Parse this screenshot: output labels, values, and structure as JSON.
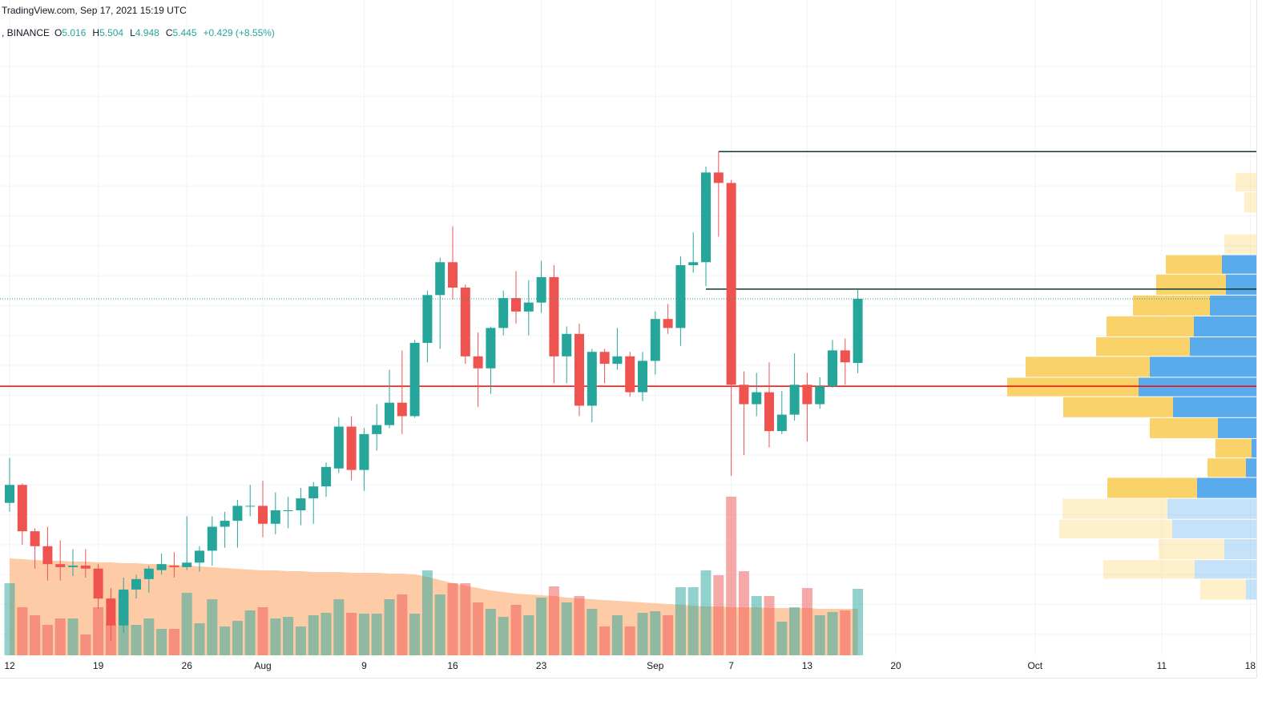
{
  "chart_data": {
    "type": "candlestick",
    "title": "TradingView.com, Sep 17, 2021 15:19 UTC",
    "subtitle": ", BINANCE",
    "ohlc_labels": [
      "O",
      "H",
      "L",
      "C"
    ],
    "change_label": "+0.429 (+8.55%)",
    "up_color": "#26a69a",
    "down_color": "#ef5350",
    "x": [
      0,
      1,
      2,
      3,
      4,
      5,
      6,
      7,
      8,
      9,
      10,
      11,
      12,
      13,
      14,
      15,
      16,
      17,
      18,
      19,
      20,
      21,
      22,
      23,
      24,
      25,
      26,
      27,
      28,
      29,
      30,
      31,
      32,
      33,
      34,
      35,
      36,
      37,
      38,
      39,
      40,
      41,
      42,
      43,
      44,
      45,
      46,
      47,
      48,
      49,
      50,
      51,
      52,
      53,
      54,
      55,
      56,
      57,
      58,
      59,
      60,
      61,
      62,
      63,
      64,
      65,
      66,
      67
    ],
    "open": [
      4.08,
      4.2,
      3.89,
      3.79,
      3.67,
      3.65,
      3.66,
      3.64,
      3.44,
      3.26,
      3.5,
      3.57,
      3.63,
      3.66,
      3.65,
      3.68,
      3.76,
      3.92,
      3.96,
      4.06,
      4.06,
      3.94,
      4.03,
      4.03,
      4.11,
      4.19,
      4.31,
      4.59,
      4.3,
      4.54,
      4.6,
      4.75,
      4.66,
      5.15,
      5.47,
      5.69,
      5.52,
      5.06,
      4.98,
      5.25,
      5.45,
      5.36,
      5.42,
      5.59,
      5.06,
      5.21,
      4.73,
      5.09,
      5.01,
      5.06,
      4.82,
      5.03,
      5.31,
      5.25,
      5.67,
      5.69,
      6.29,
      6.22,
      4.87,
      4.74,
      4.82,
      4.56,
      4.67,
      4.87,
      4.74,
      4.86,
      5.1,
      5.016
    ],
    "high": [
      4.38,
      4.21,
      3.91,
      3.92,
      3.83,
      3.77,
      3.77,
      3.67,
      3.51,
      3.58,
      3.6,
      3.66,
      3.74,
      3.75,
      3.99,
      3.79,
      3.99,
      4.02,
      4.1,
      4.2,
      4.23,
      4.15,
      4.12,
      4.18,
      4.22,
      4.35,
      4.65,
      4.66,
      4.58,
      4.74,
      4.97,
      5.1,
      5.17,
      5.5,
      5.72,
      5.93,
      5.54,
      5.22,
      5.26,
      5.5,
      5.63,
      5.57,
      5.7,
      5.67,
      5.26,
      5.28,
      5.11,
      5.11,
      5.25,
      5.09,
      5.09,
      5.36,
      5.41,
      5.73,
      5.89,
      6.33,
      6.43,
      6.24,
      4.96,
      4.95,
      5.02,
      4.83,
      5.08,
      4.95,
      4.92,
      5.17,
      5.18,
      5.504
    ],
    "low": [
      4.02,
      3.8,
      3.64,
      3.56,
      3.56,
      3.59,
      3.58,
      3.37,
      3.16,
      3.21,
      3.44,
      3.48,
      3.6,
      3.58,
      3.63,
      3.62,
      3.66,
      3.78,
      3.78,
      3.99,
      3.85,
      3.87,
      3.91,
      3.93,
      3.94,
      4.12,
      4.28,
      4.23,
      4.16,
      4.43,
      4.58,
      4.54,
      4.65,
      5.02,
      5.11,
      5.44,
      5.01,
      4.72,
      4.81,
      5.2,
      5.28,
      5.2,
      5.35,
      4.88,
      4.88,
      4.66,
      4.62,
      4.88,
      4.97,
      4.79,
      4.76,
      4.94,
      5.21,
      5.13,
      5.62,
      5.53,
      5.86,
      4.26,
      4.4,
      4.66,
      4.45,
      4.54,
      4.63,
      4.49,
      4.71,
      4.85,
      4.87,
      4.948
    ],
    "close": [
      4.2,
      3.89,
      3.79,
      3.67,
      3.65,
      3.66,
      3.64,
      3.44,
      3.26,
      3.5,
      3.57,
      3.64,
      3.67,
      3.65,
      3.68,
      3.76,
      3.92,
      3.96,
      4.06,
      4.06,
      3.94,
      4.03,
      4.03,
      4.11,
      4.19,
      4.32,
      4.59,
      4.3,
      4.54,
      4.6,
      4.75,
      4.66,
      5.15,
      5.47,
      5.69,
      5.52,
      5.06,
      4.98,
      5.25,
      5.45,
      5.36,
      5.42,
      5.59,
      5.06,
      5.21,
      4.73,
      5.09,
      5.01,
      5.06,
      4.82,
      5.03,
      5.31,
      5.25,
      5.67,
      5.69,
      6.29,
      6.22,
      4.87,
      4.74,
      4.82,
      4.56,
      4.67,
      4.87,
      4.74,
      4.86,
      5.1,
      5.02,
      5.445
    ],
    "volume": [
      90,
      60,
      50,
      38,
      46,
      46,
      26,
      60,
      40,
      80,
      38,
      46,
      33,
      33,
      78,
      40,
      70,
      36,
      43,
      56,
      60,
      46,
      48,
      36,
      50,
      53,
      70,
      53,
      52,
      52,
      70,
      76,
      52,
      106,
      76,
      90,
      90,
      66,
      58,
      48,
      63,
      50,
      72,
      86,
      66,
      74,
      58,
      36,
      50,
      36,
      53,
      55,
      50,
      85,
      85,
      106,
      100,
      198,
      105,
      74,
      74,
      42,
      60,
      84,
      50,
      54,
      56,
      83
    ],
    "volume_ma": [
      121,
      120,
      119,
      118,
      118,
      117,
      117,
      116,
      116,
      115,
      115,
      114,
      114,
      113,
      112,
      111,
      110,
      109,
      108,
      107,
      106,
      106,
      105,
      105,
      104,
      104,
      104,
      103,
      103,
      103,
      102,
      102,
      101,
      98,
      94,
      90,
      87,
      84,
      81,
      79,
      77,
      76,
      75,
      74,
      72,
      71,
      70,
      69,
      68,
      67,
      66,
      65,
      64,
      63,
      62,
      61,
      61,
      60,
      60,
      60,
      59,
      59,
      59,
      59,
      58,
      58,
      58,
      58
    ],
    "volume_ma_color": "#fdcba6",
    "xlim": [
      -0.76,
      98.48
    ],
    "ylim": [
      3.06,
      7.444
    ],
    "volume_ylim": [
      0,
      818
    ],
    "ygrid": [
      3.2,
      3.4,
      3.6,
      3.8,
      4,
      4.2,
      4.4,
      4.6,
      4.8,
      5,
      5.2,
      5.4,
      5.6,
      5.8,
      6,
      6.2,
      6.4,
      6.6,
      6.8,
      7
    ],
    "xticks": [
      {
        "value": 0,
        "label": "12"
      },
      {
        "value": 7,
        "label": "19"
      },
      {
        "value": 14,
        "label": "26"
      },
      {
        "value": 20,
        "label": "Aug"
      },
      {
        "value": 28,
        "label": "9"
      },
      {
        "value": 35,
        "label": "16"
      },
      {
        "value": 42,
        "label": "23"
      },
      {
        "value": 51,
        "label": "Sep"
      },
      {
        "value": 57,
        "label": "7"
      },
      {
        "value": 63,
        "label": "13"
      },
      {
        "value": 70,
        "label": "20"
      },
      {
        "value": 81,
        "label": "Oct"
      },
      {
        "value": 91,
        "label": "11"
      },
      {
        "value": 98,
        "label": "18"
      }
    ],
    "levels": [
      {
        "value": 6.43,
        "from": 56,
        "color": "#0c3b33"
      },
      {
        "value": 5.51,
        "from": 55,
        "color": "#0c3b33"
      },
      {
        "value": 4.86,
        "color": "#ff0000"
      }
    ],
    "profile": {
      "up_color": "#5aabec",
      "down_color": "#f9d36a",
      "rows": [
        {
          "high": 6.29,
          "low": 6.16,
          "up": 0,
          "down": 26,
          "value_area": false
        },
        {
          "high": 6.16,
          "low": 6.02,
          "up": 0,
          "down": 15,
          "value_area": false
        },
        {
          "high": 5.88,
          "low": 5.74,
          "up": 0,
          "down": 40,
          "value_area": false
        },
        {
          "high": 5.74,
          "low": 5.61,
          "up": 43,
          "down": 70,
          "value_area": true
        },
        {
          "high": 5.61,
          "low": 5.47,
          "up": 38,
          "down": 87,
          "value_area": true
        },
        {
          "high": 5.47,
          "low": 5.33,
          "up": 58,
          "down": 96,
          "value_area": true
        },
        {
          "high": 5.33,
          "low": 5.19,
          "up": 78,
          "down": 109,
          "value_area": true
        },
        {
          "high": 5.19,
          "low": 5.06,
          "up": 83,
          "down": 117,
          "value_area": true
        },
        {
          "high": 5.06,
          "low": 4.92,
          "up": 133,
          "down": 155,
          "value_area": true
        },
        {
          "high": 4.92,
          "low": 4.79,
          "up": 147,
          "down": 164,
          "value_area": true
        },
        {
          "high": 4.79,
          "low": 4.65,
          "up": 104,
          "down": 137,
          "value_area": true
        },
        {
          "high": 4.65,
          "low": 4.51,
          "up": 48,
          "down": 85,
          "value_area": true
        },
        {
          "high": 4.51,
          "low": 4.38,
          "up": 6,
          "down": 45,
          "value_area": true
        },
        {
          "high": 4.38,
          "low": 4.25,
          "up": 13,
          "down": 48,
          "value_area": true
        },
        {
          "high": 4.25,
          "low": 4.11,
          "up": 74,
          "down": 112,
          "value_area": true
        },
        {
          "high": 4.11,
          "low": 3.97,
          "up": 111,
          "down": 131,
          "value_area": false
        },
        {
          "high": 3.97,
          "low": 3.84,
          "up": 105,
          "down": 141,
          "value_area": false
        },
        {
          "high": 3.84,
          "low": 3.7,
          "up": 40,
          "down": 82,
          "value_area": false
        },
        {
          "high": 3.7,
          "low": 3.57,
          "up": 77,
          "down": 114,
          "value_area": false
        },
        {
          "high": 3.57,
          "low": 3.43,
          "up": 13,
          "down": 57,
          "value_area": false
        }
      ]
    }
  }
}
